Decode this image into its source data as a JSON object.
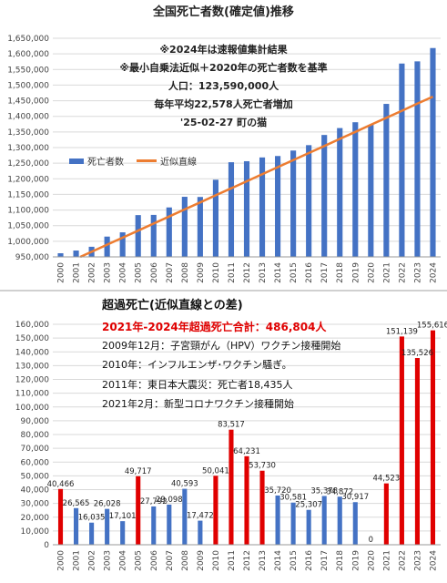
{
  "chart_data": [
    {
      "type": "bar",
      "title": "全国死亡者数(確定値)推移",
      "notes": [
        "※2024年は速報値集計結果",
        "※最小自乗法近似＋2020年の死亡者数を基準",
        "人口：123,590,000人",
        "毎年平均22,578人死亡者増加",
        "'25-02-27 町の猫"
      ],
      "categories": [
        "2000",
        "2001",
        "2002",
        "2003",
        "2004",
        "2005",
        "2006",
        "2007",
        "2008",
        "2009",
        "2010",
        "2011",
        "2012",
        "2013",
        "2014",
        "2015",
        "2016",
        "2017",
        "2018",
        "2019",
        "2020",
        "2021",
        "2022",
        "2023",
        "2024"
      ],
      "series": [
        {
          "name": "死亡者数",
          "values": [
            961653,
            970331,
            982379,
            1014951,
            1028602,
            1083796,
            1084450,
            1108334,
            1142407,
            1141865,
            1197012,
            1253066,
            1256359,
            1268436,
            1273004,
            1290444,
            1307748,
            1340397,
            1362470,
            1381093,
            1372755,
            1439856,
            1569050,
            1576016,
            1618684
          ]
        },
        {
          "name": "近似直線",
          "values": [
            921255,
            943833,
            966411,
            988989,
            1011567,
            1034145,
            1056723,
            1079301,
            1101879,
            1124457,
            1147035,
            1169613,
            1192191,
            1214769,
            1237347,
            1259925,
            1282503,
            1305081,
            1327659,
            1350237,
            1372815,
            1395393,
            1417971,
            1440549,
            1463127
          ]
        }
      ],
      "ylim": [
        950000,
        1650000
      ],
      "yticks": [
        "950,000",
        "1,000,000",
        "1,050,000",
        "1,100,000",
        "1,150,000",
        "1,200,000",
        "1,250,000",
        "1,300,000",
        "1,350,000",
        "1,400,000",
        "1,450,000",
        "1,500,000",
        "1,550,000",
        "1,600,000",
        "1,650,000"
      ],
      "legend": "left-middle",
      "colors": {
        "bar": "#4472C4",
        "line": "#ED7D31"
      }
    },
    {
      "type": "bar",
      "title": "超過死亡(近似直線との差)",
      "headline": "2021年-2024年超過死亡合計：486,804人",
      "notes": [
        "2009年12月：子宮頸がん（HPV）ワクチン接種開始",
        "2010年：インフルエンザ･ワクチン騒ぎ。",
        "2011年：東日本大震災：死亡者18,435人",
        "2021年2月：新型コロナワクチン接種開始"
      ],
      "categories": [
        "2000",
        "2001",
        "2002",
        "2003",
        "2004",
        "2005",
        "2006",
        "2007",
        "2008",
        "2009",
        "2010",
        "2011",
        "2012",
        "2013",
        "2014",
        "2015",
        "2016",
        "2017",
        "2018",
        "2019",
        "2020",
        "2021",
        "2022",
        "2023",
        "2024"
      ],
      "values": [
        40466,
        26565,
        16035,
        26028,
        17101,
        49717,
        27792,
        29098,
        40593,
        17472,
        50041,
        83517,
        64231,
        53730,
        35720,
        30581,
        25307,
        35378,
        34872,
        30917,
        0,
        44523,
        151139,
        135526,
        155616
      ],
      "labels": [
        "40,466",
        "26,565",
        "16,035",
        "26,028",
        "17,101",
        "49,717",
        "27,792",
        "29,098",
        "40,593",
        "17,472",
        "50,041",
        "83,517",
        "64,231",
        "53,730",
        "35,720",
        "30,581",
        "25,307",
        "35,378",
        "34,872",
        "30,917",
        "0",
        "44,523",
        "151,139",
        "135,526",
        "155,616"
      ],
      "highlight": [
        "red",
        "blue",
        "blue",
        "blue",
        "blue",
        "red",
        "blue",
        "blue",
        "blue",
        "blue",
        "red",
        "red",
        "red",
        "red",
        "blue",
        "blue",
        "blue",
        "blue",
        "blue",
        "blue",
        "blue",
        "red",
        "red",
        "red",
        "red"
      ],
      "ylim": [
        0,
        160000
      ],
      "yticks": [
        "0",
        "10,000",
        "20,000",
        "30,000",
        "40,000",
        "50,000",
        "60,000",
        "70,000",
        "80,000",
        "90,000",
        "100,000",
        "110,000",
        "120,000",
        "130,000",
        "140,000",
        "150,000",
        "160,000"
      ],
      "colors": {
        "blue": "#4472C4",
        "red": "#E00000"
      }
    }
  ]
}
